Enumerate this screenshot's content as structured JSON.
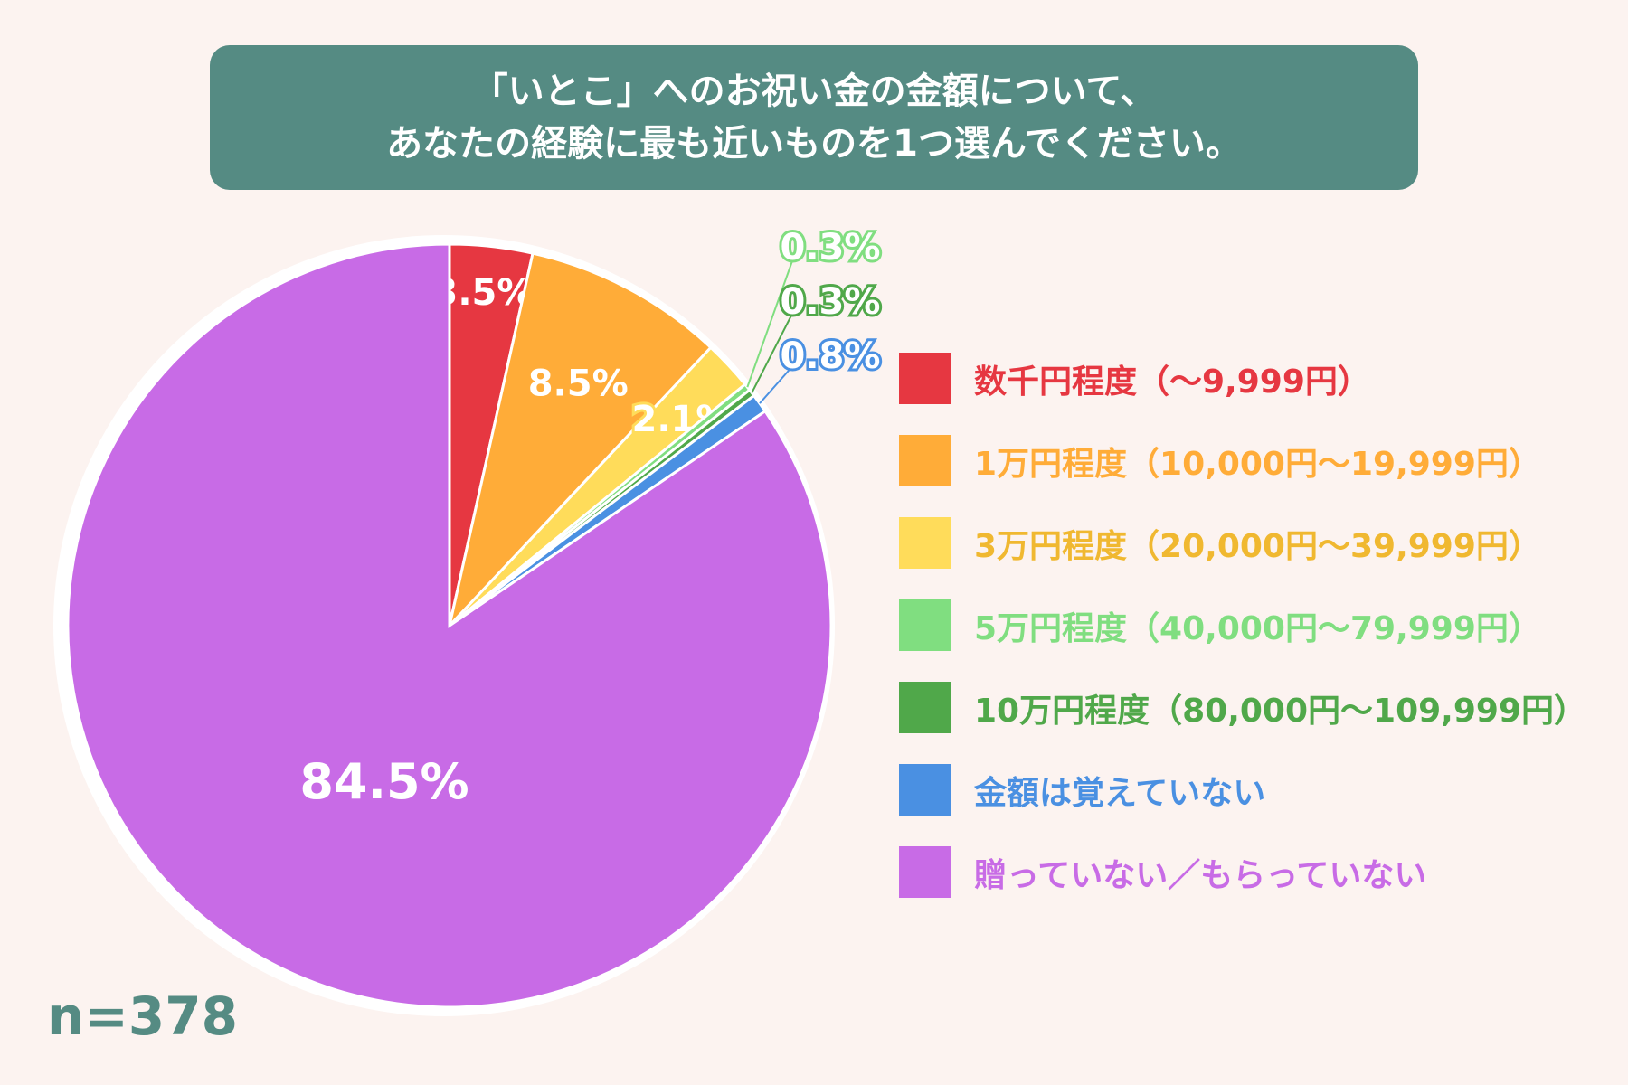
{
  "title": {
    "line1": "「いとこ」へのお祝い金の金額について、",
    "line2": "あなたの経験に最も近いものを1つ選んでください。"
  },
  "sample": "n=378",
  "chart_data": {
    "type": "pie",
    "title": "「いとこ」へのお祝い金の金額について、あなたの経験に最も近いものを1つ選んでください。",
    "categories": [
      "数千円程度（～9,999円）",
      "1万円程度（10,000円～19,999円）",
      "3万円程度（20,000円～39,999円）",
      "5万円程度（40,000円～79,999円）",
      "10万円程度（80,000円～109,999円）",
      "金額は覚えていない",
      "贈っていない／もらっていない"
    ],
    "values": [
      3.5,
      8.5,
      2.1,
      0.3,
      0.3,
      0.8,
      84.5
    ],
    "labels": [
      "3.5%",
      "8.5%",
      "2.1%",
      "0.3%",
      "0.3%",
      "0.8%",
      "84.5%"
    ],
    "colors": [
      "#e63741",
      "#ffac38",
      "#ffdc5a",
      "#80de80",
      "#50a84a",
      "#4a90e2",
      "#c86be6"
    ],
    "legend_text_colors": [
      "#e63741",
      "#ffac38",
      "#f0b830",
      "#80de80",
      "#50a84a",
      "#4a90e2",
      "#c86be6"
    ],
    "legend_position": "right",
    "start": "top-clockwise"
  }
}
